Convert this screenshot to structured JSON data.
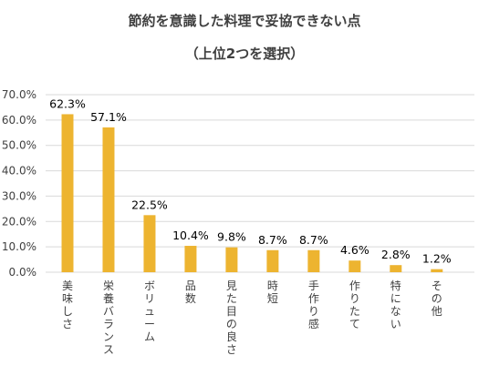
{
  "chart_data": {
    "type": "bar",
    "title": "節約を意識した料理で妥協できない点",
    "subtitle": "（上位2つを選択）",
    "xlabel": "",
    "ylabel": "",
    "ylim": [
      0,
      70
    ],
    "y_ticks": [
      "0.0%",
      "10.0%",
      "20.0%",
      "30.0%",
      "40.0%",
      "50.0%",
      "60.0%",
      "70.0%"
    ],
    "y_tick_values": [
      0,
      10,
      20,
      30,
      40,
      50,
      60,
      70
    ],
    "categories": [
      "美味しさ",
      "栄養バランス",
      "ボリューム",
      "品数",
      "見た目の良さ",
      "時短",
      "手作り感",
      "作りたて",
      "特にない",
      "その他"
    ],
    "values": [
      62.3,
      57.1,
      22.5,
      10.4,
      9.8,
      8.7,
      8.7,
      4.6,
      2.8,
      1.2
    ],
    "data_labels": [
      "62.3%",
      "57.1%",
      "22.5%",
      "10.4%",
      "9.8%",
      "8.7%",
      "8.7%",
      "4.6%",
      "2.8%",
      "1.2%"
    ],
    "grid": true,
    "legend": "none",
    "colors": {
      "bar": "#EDB430",
      "grid": "#D9D9D9",
      "text": "#404040"
    }
  }
}
